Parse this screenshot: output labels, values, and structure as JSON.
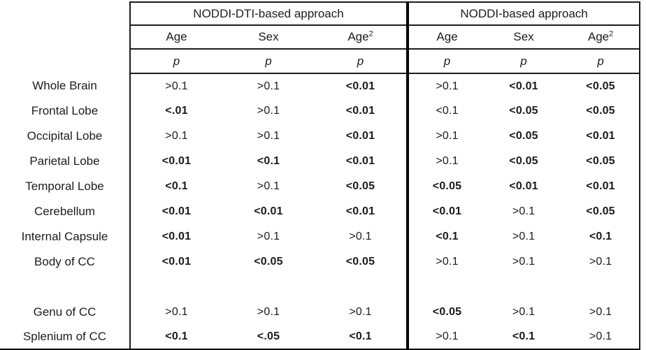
{
  "table": {
    "groups": [
      {
        "label": "NODDI-DTI-based approach"
      },
      {
        "label": "NODDI-based approach"
      }
    ],
    "columns": [
      {
        "base": "Age",
        "sup": ""
      },
      {
        "base": "Sex",
        "sup": ""
      },
      {
        "base": "Age",
        "sup": "2"
      },
      {
        "base": "Age",
        "sup": ""
      },
      {
        "base": "Sex",
        "sup": ""
      },
      {
        "base": "Age",
        "sup": "2"
      }
    ],
    "stat_label": "p",
    "rows": [
      {
        "label": "Whole Brain",
        "values": [
          {
            "text": ">0.1",
            "bold": false
          },
          {
            "text": ">0.1",
            "bold": false
          },
          {
            "text": "<0.01",
            "bold": true
          },
          {
            "text": ">0.1",
            "bold": false
          },
          {
            "text": "<0.01",
            "bold": true
          },
          {
            "text": "<0.05",
            "bold": true
          }
        ]
      },
      {
        "label": "Frontal Lobe",
        "values": [
          {
            "text": "<.01",
            "bold": true
          },
          {
            "text": ">0.1",
            "bold": false
          },
          {
            "text": "<0.01",
            "bold": true
          },
          {
            "text": "<0.1",
            "bold": false
          },
          {
            "text": "<0.05",
            "bold": true
          },
          {
            "text": "<0.05",
            "bold": true
          }
        ]
      },
      {
        "label": "Occipital Lobe",
        "values": [
          {
            "text": ">0.1",
            "bold": false
          },
          {
            "text": ">0.1",
            "bold": false
          },
          {
            "text": "<0.01",
            "bold": true
          },
          {
            "text": ">0.1",
            "bold": false
          },
          {
            "text": "<0.05",
            "bold": true
          },
          {
            "text": "<0.01",
            "bold": true
          }
        ]
      },
      {
        "label": "Parietal Lobe",
        "values": [
          {
            "text": "<0.01",
            "bold": true
          },
          {
            "text": "<0.1",
            "bold": true
          },
          {
            "text": "<0.01",
            "bold": true
          },
          {
            "text": ">0.1",
            "bold": false
          },
          {
            "text": "<0.05",
            "bold": true
          },
          {
            "text": "<0.05",
            "bold": true
          }
        ]
      },
      {
        "label": "Temporal Lobe",
        "values": [
          {
            "text": "<0.1",
            "bold": true
          },
          {
            "text": ">0.1",
            "bold": false
          },
          {
            "text": "<0.05",
            "bold": true
          },
          {
            "text": "<0.05",
            "bold": true
          },
          {
            "text": "<0.01",
            "bold": true
          },
          {
            "text": "<0.01",
            "bold": true
          }
        ]
      },
      {
        "label": "Cerebellum",
        "values": [
          {
            "text": "<0.01",
            "bold": true
          },
          {
            "text": "<0.01",
            "bold": true
          },
          {
            "text": "<0.01",
            "bold": true
          },
          {
            "text": "<0.01",
            "bold": true
          },
          {
            "text": ">0.1",
            "bold": false
          },
          {
            "text": "<0.05",
            "bold": true
          }
        ]
      },
      {
        "label": "Internal Capsule",
        "values": [
          {
            "text": "<0.01",
            "bold": true
          },
          {
            "text": ">0.1",
            "bold": false
          },
          {
            "text": ">0.1",
            "bold": false
          },
          {
            "text": "<0.1",
            "bold": true
          },
          {
            "text": ">0.1",
            "bold": false
          },
          {
            "text": "<0.1",
            "bold": true
          }
        ]
      },
      {
        "label": "Body of CC",
        "values": [
          {
            "text": "<0.01",
            "bold": true
          },
          {
            "text": "<0.05",
            "bold": true
          },
          {
            "text": "<0.05",
            "bold": true
          },
          {
            "text": ">0.1",
            "bold": false
          },
          {
            "text": ">0.1",
            "bold": false
          },
          {
            "text": ">0.1",
            "bold": false
          }
        ]
      },
      {
        "label": "",
        "values": [
          {
            "text": "",
            "bold": false
          },
          {
            "text": "",
            "bold": false
          },
          {
            "text": "",
            "bold": false
          },
          {
            "text": "",
            "bold": false
          },
          {
            "text": "",
            "bold": false
          },
          {
            "text": "",
            "bold": false
          }
        ]
      },
      {
        "label": "Genu of CC",
        "values": [
          {
            "text": ">0.1",
            "bold": false
          },
          {
            "text": ">0.1",
            "bold": false
          },
          {
            "text": ">0.1",
            "bold": false
          },
          {
            "text": "<0.05",
            "bold": true
          },
          {
            "text": ">0.1",
            "bold": false
          },
          {
            "text": ">0.1",
            "bold": false
          }
        ]
      },
      {
        "label": "Splenium of CC",
        "values": [
          {
            "text": "<0.1",
            "bold": true
          },
          {
            "text": "<.05",
            "bold": true
          },
          {
            "text": "<0.1",
            "bold": true
          },
          {
            "text": ">0.1",
            "bold": false
          },
          {
            "text": "<0.1",
            "bold": true
          },
          {
            "text": ">0.1",
            "bold": false
          }
        ]
      }
    ]
  }
}
